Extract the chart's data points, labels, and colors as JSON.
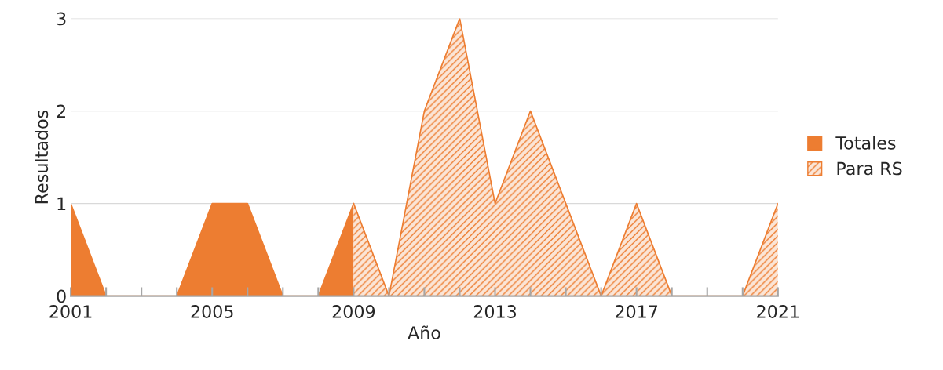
{
  "chart_data": {
    "type": "area",
    "xlabel": "Año",
    "ylabel": "Resultados",
    "x": [
      2001,
      2002,
      2003,
      2004,
      2005,
      2006,
      2007,
      2008,
      2009,
      2010,
      2011,
      2012,
      2013,
      2014,
      2015,
      2016,
      2017,
      2018,
      2019,
      2020,
      2021
    ],
    "series": [
      {
        "name": "Totales",
        "color": "#ed7d31",
        "values": [
          1,
          0,
          0,
          0,
          1,
          1,
          0,
          0,
          1,
          null,
          null,
          null,
          null,
          null,
          null,
          null,
          null,
          null,
          null,
          null,
          null
        ]
      },
      {
        "name": "Para RS",
        "color": "#ed7d31",
        "values": [
          null,
          null,
          null,
          null,
          null,
          null,
          null,
          null,
          1,
          0,
          2,
          3,
          1,
          2,
          1,
          0,
          1,
          0,
          0,
          0,
          1
        ]
      }
    ],
    "xlim": [
      2001,
      2021
    ],
    "xticks": [
      2001,
      {
        "value": 2002,
        "label": null
      },
      {
        "value": 2003,
        "label": null
      },
      {
        "value": 2004,
        "label": null
      },
      2005,
      {
        "value": 2006,
        "label": null
      },
      {
        "value": 2007,
        "label": null
      },
      {
        "value": 2008,
        "label": null
      },
      2009,
      {
        "value": 2010,
        "label": null
      },
      {
        "value": 2011,
        "label": null
      },
      {
        "value": 2012,
        "label": null
      },
      2013,
      {
        "value": 2014,
        "label": null
      },
      {
        "value": 2015,
        "label": null
      },
      {
        "value": 2016,
        "label": null
      },
      2017,
      {
        "value": 2018,
        "label": null
      },
      {
        "value": 2019,
        "label": null
      },
      {
        "value": 2020,
        "label": null
      },
      2021
    ],
    "ylim": [
      0,
      3
    ],
    "yticks": [
      0,
      1,
      2,
      3
    ],
    "grid": "y",
    "legend": "right"
  }
}
